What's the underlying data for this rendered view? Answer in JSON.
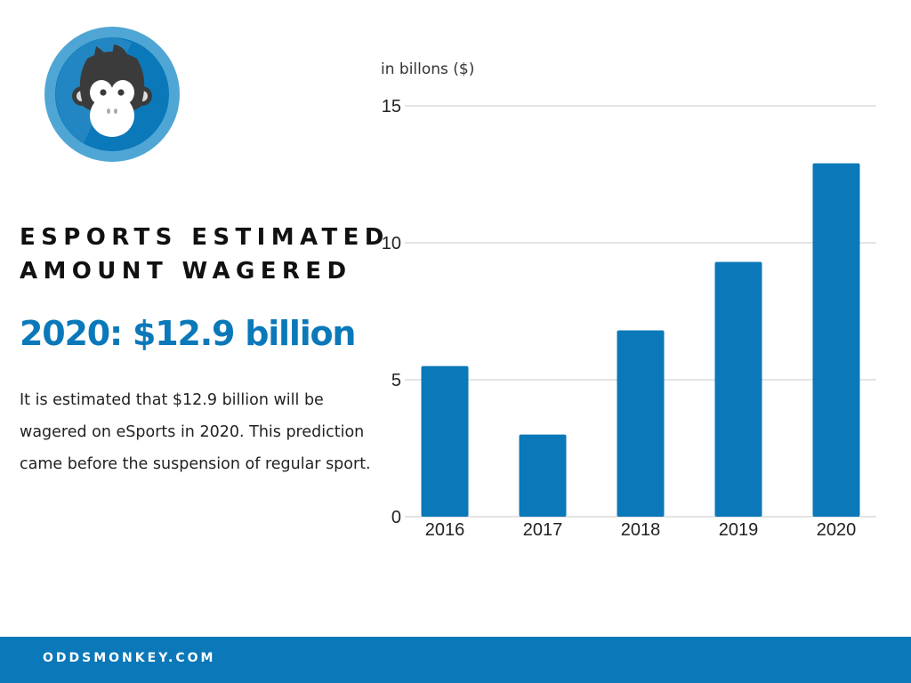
{
  "colors": {
    "accent": "#0b78b9",
    "bar": "#0b78b9",
    "grid": "#c8c8c8",
    "logo_ring": "#4fa6d4",
    "logo_inner": "#0b78b9"
  },
  "logo": {
    "icon": "monkey-face-icon"
  },
  "headline": {
    "line1": "ESPORTS ESTIMATED",
    "line2": "AMOUNT WAGERED"
  },
  "highlight": "2020: $12.9 billion",
  "description": "It is estimated that $12.9 billion will be wagered on eSports in 2020. This prediction came before the suspension of regular sport.",
  "footer": {
    "site": "ODDSMONKEY.COM"
  },
  "chart_data": {
    "type": "bar",
    "unit_label": "in billons ($)",
    "categories": [
      "2016",
      "2017",
      "2018",
      "2019",
      "2020"
    ],
    "values": [
      5.5,
      3.0,
      6.8,
      9.3,
      12.9
    ],
    "yticks": [
      0,
      5,
      10,
      15
    ],
    "ylim": [
      0,
      15
    ],
    "grid": true,
    "legend": "none"
  }
}
